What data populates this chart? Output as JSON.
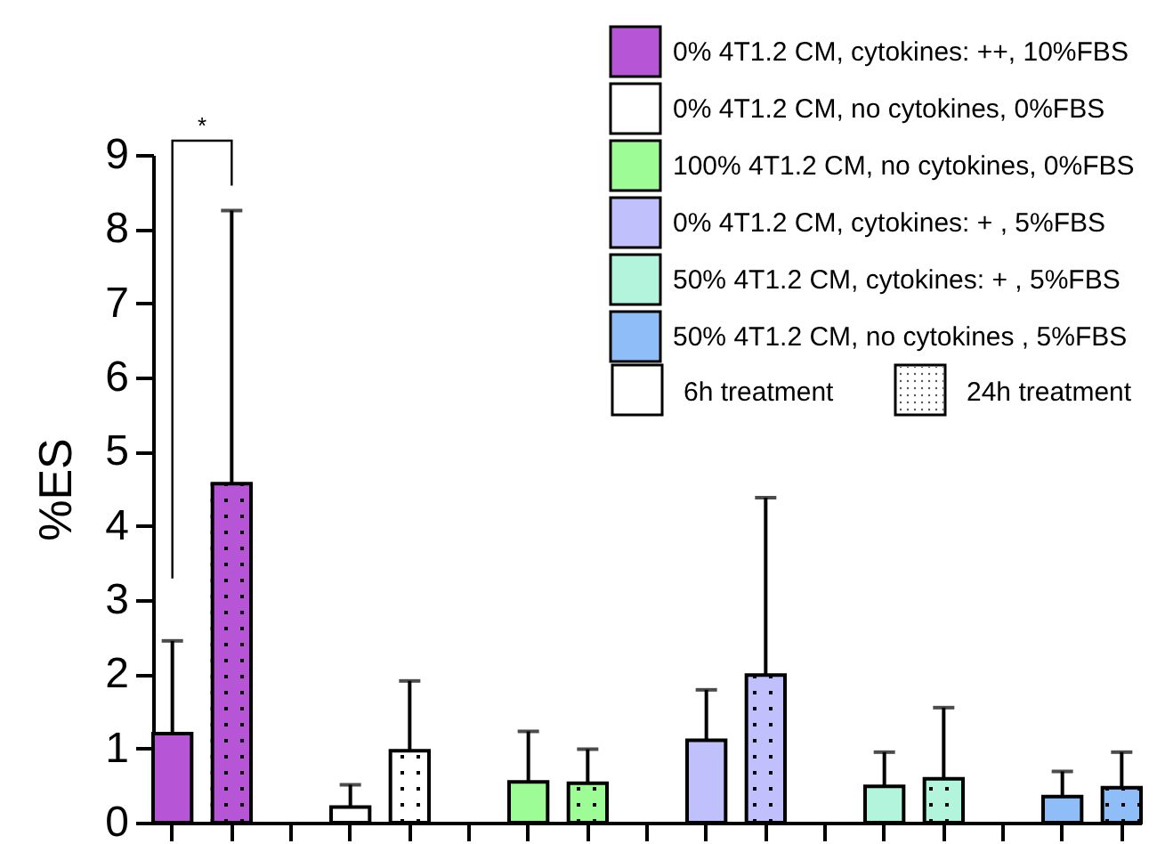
{
  "chart_data": {
    "type": "bar",
    "ylabel": "%ES",
    "categories": [
      null,
      null,
      null,
      null,
      null,
      null,
      null,
      null,
      null,
      null,
      null,
      null,
      null,
      null,
      null,
      null,
      null
    ],
    "series": [
      {
        "name": "0% 4T1.2 CM, cytokines: ++, 10%FBS",
        "color": "#b655d6",
        "values": [
          1.2,
          4.57,
          null,
          null,
          null,
          null,
          null,
          null,
          null,
          null,
          null,
          null,
          null,
          null,
          null,
          null,
          null
        ],
        "errors": [
          [
            1.2,
            2.45
          ],
          [
            4.57,
            8.25
          ],
          null,
          null,
          null,
          null,
          null,
          null,
          null,
          null,
          null,
          null,
          null,
          null,
          null,
          null,
          null
        ]
      },
      {
        "name": "0% 4T1.2 CM, no cytokines, 0%FBS",
        "color": "#ffffff",
        "values": [
          null,
          null,
          null,
          0.21,
          0.97,
          null,
          null,
          null,
          null,
          null,
          null,
          null,
          null,
          null,
          null,
          null,
          null
        ],
        "errors": [
          null,
          null,
          null,
          [
            0.21,
            0.51
          ],
          [
            0.97,
            1.91
          ],
          null,
          null,
          null,
          null,
          null,
          null,
          null,
          null,
          null,
          null,
          null,
          null
        ]
      },
      {
        "name": "100% 4T1.2 CM, no cytokines, 0%FBS",
        "color": "#9efc96",
        "values": [
          null,
          null,
          null,
          null,
          null,
          null,
          0.55,
          0.53,
          null,
          null,
          null,
          null,
          null,
          null,
          null,
          null,
          null
        ],
        "errors": [
          null,
          null,
          null,
          null,
          null,
          null,
          [
            0.55,
            1.23
          ],
          [
            0.53,
            0.99
          ],
          null,
          null,
          null,
          null,
          null,
          null,
          null,
          null,
          null
        ]
      },
      {
        "name": "0% 4T1.2 CM, cytokines: + , 5%FBS",
        "color": "#c0c0fc",
        "values": [
          null,
          null,
          null,
          null,
          null,
          null,
          null,
          null,
          null,
          1.11,
          1.99,
          null,
          null,
          null,
          null,
          null,
          null
        ],
        "errors": [
          null,
          null,
          null,
          null,
          null,
          null,
          null,
          null,
          null,
          [
            1.11,
            1.79
          ],
          [
            1.99,
            4.38
          ],
          null,
          null,
          null,
          null,
          null,
          null
        ]
      },
      {
        "name": "50% 4T1.2 CM, cytokines: + , 5%FBS",
        "color": "#b3f5dc",
        "values": [
          null,
          null,
          null,
          null,
          null,
          null,
          null,
          null,
          null,
          null,
          null,
          null,
          0.49,
          0.59,
          null,
          null,
          null
        ],
        "errors": [
          null,
          null,
          null,
          null,
          null,
          null,
          null,
          null,
          null,
          null,
          null,
          null,
          [
            0.49,
            0.95
          ],
          [
            0.59,
            1.55
          ],
          null,
          null,
          null
        ]
      },
      {
        "name": "50% 4T1.2 CM, no cytokines , 5%FBS",
        "color": "#8fbdf7",
        "values": [
          null,
          null,
          null,
          null,
          null,
          null,
          null,
          null,
          null,
          null,
          null,
          null,
          null,
          null,
          null,
          0.35,
          0.47
        ],
        "errors": [
          null,
          null,
          null,
          null,
          null,
          null,
          null,
          null,
          null,
          null,
          null,
          null,
          null,
          null,
          null,
          [
            0.35,
            0.69
          ],
          [
            0.47,
            0.95
          ]
        ]
      }
    ],
    "ylim": [
      0,
      9
    ],
    "yticks": [
      0,
      1,
      2,
      3,
      4,
      5,
      6,
      7,
      8,
      9
    ],
    "grid": false,
    "legend": "top right",
    "tick_labels": "y",
    "annotations": [
      "*",
      "6h treatment",
      "24h treatment"
    ]
  }
}
